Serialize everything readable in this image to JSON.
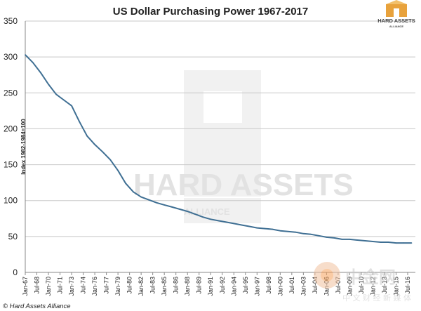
{
  "chart_data": {
    "type": "line",
    "title": "US Dollar Purchasing Power 1967-2017",
    "ylabel": "Index 1982-1984=100",
    "xlabel": "",
    "ylim": [
      0,
      350
    ],
    "yticks": [
      0,
      50,
      100,
      150,
      200,
      250,
      300,
      350
    ],
    "grid": true,
    "legend": "none",
    "xticks": [
      "Jan-67",
      "Jul-68",
      "Jan-70",
      "Jul-71",
      "Jan-73",
      "Jul-74",
      "Jan-76",
      "Jul-77",
      "Jan-79",
      "Jul-80",
      "Jan-82",
      "Jul-83",
      "Jan-85",
      "Jul-86",
      "Jan-88",
      "Jul-89",
      "Jan-91",
      "Jul-92",
      "Jan-94",
      "Jul-95",
      "Jan-97",
      "Jul-98",
      "Jan-00",
      "Jul-01",
      "Jan-03",
      "Jul-04",
      "Jan-06",
      "Jul-07",
      "Jan-09",
      "Jul-10",
      "Jan-12",
      "Jul-13",
      "Jan-15",
      "Jul-16"
    ],
    "series": [
      {
        "name": "",
        "color": "#3f6f93",
        "x": [
          1967.0,
          1968.0,
          1969.0,
          1970.0,
          1971.0,
          1972.0,
          1973.0,
          1974.0,
          1975.0,
          1976.0,
          1977.0,
          1978.0,
          1979.0,
          1980.0,
          1981.0,
          1982.0,
          1983.0,
          1984.0,
          1985.0,
          1986.0,
          1987.0,
          1988.0,
          1989.0,
          1990.0,
          1991.0,
          1992.0,
          1993.0,
          1994.0,
          1995.0,
          1996.0,
          1997.0,
          1998.0,
          1999.0,
          2000.0,
          2001.0,
          2002.0,
          2003.0,
          2004.0,
          2005.0,
          2006.0,
          2007.0,
          2008.0,
          2009.0,
          2010.0,
          2011.0,
          2012.0,
          2013.0,
          2014.0,
          2015.0,
          2016.0,
          2017.0
        ],
        "values": [
          303,
          292,
          278,
          262,
          248,
          240,
          232,
          210,
          190,
          178,
          168,
          157,
          142,
          124,
          112,
          105,
          101,
          97,
          94,
          91,
          88,
          85,
          81,
          77,
          74,
          72,
          70,
          68,
          66,
          64,
          62,
          61,
          60,
          58,
          57,
          56,
          54,
          53,
          51,
          49,
          48,
          46,
          46,
          45,
          44,
          43,
          42,
          42,
          41,
          41,
          41
        ]
      }
    ]
  },
  "footer": {
    "source": "© Hard Assets Alliance"
  },
  "logo": {
    "line1": "HARD ASSETS",
    "line2": "ALLIANCE"
  },
  "watermark": {
    "line1": "HARD ASSETS",
    "line2": "ALLIANCE"
  },
  "corner_watermark": {
    "brand": "中金网",
    "sub": "中 文 财 经 新 媒 体"
  }
}
